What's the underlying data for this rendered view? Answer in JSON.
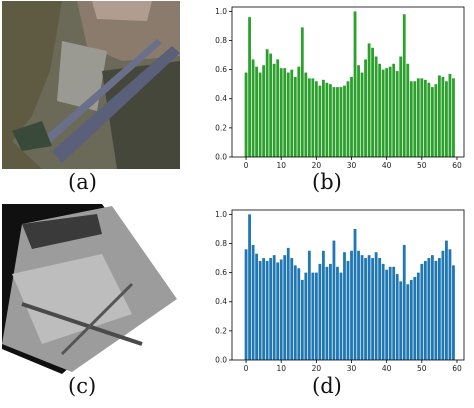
{
  "labels": {
    "a": "(a)",
    "b": "(b)",
    "c": "(c)",
    "d": "(d)"
  },
  "chart_data": [
    {
      "panel": "b",
      "type": "bar",
      "color": "#2ca02c",
      "x": [
        0,
        1,
        2,
        3,
        4,
        5,
        6,
        7,
        8,
        9,
        10,
        11,
        12,
        13,
        14,
        15,
        16,
        17,
        18,
        19,
        20,
        21,
        22,
        23,
        24,
        25,
        26,
        27,
        28,
        29,
        30,
        31,
        32,
        33,
        34,
        35,
        36,
        37,
        38,
        39,
        40,
        41,
        42,
        43,
        44,
        45,
        46,
        47,
        48,
        49,
        50,
        51,
        52,
        53,
        54,
        55,
        56,
        57,
        58,
        59
      ],
      "values": [
        0.58,
        0.96,
        0.67,
        0.62,
        0.58,
        0.63,
        0.74,
        0.71,
        0.64,
        0.67,
        0.61,
        0.61,
        0.58,
        0.6,
        0.55,
        0.62,
        0.89,
        0.58,
        0.54,
        0.54,
        0.52,
        0.49,
        0.53,
        0.51,
        0.5,
        0.48,
        0.48,
        0.48,
        0.49,
        0.52,
        0.55,
        1.0,
        0.63,
        0.58,
        0.67,
        0.78,
        0.75,
        0.69,
        0.64,
        0.6,
        0.61,
        0.62,
        0.64,
        0.59,
        0.69,
        0.98,
        0.64,
        0.52,
        0.52,
        0.54,
        0.54,
        0.53,
        0.51,
        0.48,
        0.5,
        0.56,
        0.55,
        0.52,
        0.57,
        0.54
      ],
      "xlim": [
        -4,
        62
      ],
      "ylim": [
        0,
        1.03
      ],
      "xticks": [
        0,
        10,
        20,
        30,
        40,
        50,
        60
      ],
      "yticks": [
        0.0,
        0.2,
        0.4,
        0.6,
        0.8,
        1.0
      ],
      "xtick_labels": [
        "0",
        "10",
        "20",
        "30",
        "40",
        "50",
        "60"
      ],
      "ytick_labels": [
        "0.0",
        "0.2",
        "0.4",
        "0.6",
        "0.8",
        "1.0"
      ]
    },
    {
      "panel": "d",
      "type": "bar",
      "color": "#1f77b4",
      "x": [
        0,
        1,
        2,
        3,
        4,
        5,
        6,
        7,
        8,
        9,
        10,
        11,
        12,
        13,
        14,
        15,
        16,
        17,
        18,
        19,
        20,
        21,
        22,
        23,
        24,
        25,
        26,
        27,
        28,
        29,
        30,
        31,
        32,
        33,
        34,
        35,
        36,
        37,
        38,
        39,
        40,
        41,
        42,
        43,
        44,
        45,
        46,
        47,
        48,
        49,
        50,
        51,
        52,
        53,
        54,
        55,
        56,
        57,
        58,
        59
      ],
      "values": [
        0.76,
        1.0,
        0.79,
        0.73,
        0.68,
        0.7,
        0.68,
        0.7,
        0.72,
        0.67,
        0.69,
        0.72,
        0.77,
        0.7,
        0.65,
        0.63,
        0.55,
        0.6,
        0.75,
        0.6,
        0.6,
        0.66,
        0.75,
        0.64,
        0.66,
        0.82,
        0.64,
        0.6,
        0.74,
        0.68,
        0.75,
        0.9,
        0.75,
        0.72,
        0.7,
        0.72,
        0.7,
        0.74,
        0.7,
        0.66,
        0.62,
        0.64,
        0.64,
        0.59,
        0.54,
        0.79,
        0.52,
        0.55,
        0.57,
        0.6,
        0.66,
        0.68,
        0.7,
        0.72,
        0.68,
        0.7,
        0.75,
        0.82,
        0.76,
        0.65
      ],
      "xlim": [
        -4,
        62
      ],
      "ylim": [
        0,
        1.03
      ],
      "xticks": [
        0,
        10,
        20,
        30,
        40,
        50,
        60
      ],
      "yticks": [
        0.0,
        0.2,
        0.4,
        0.6,
        0.8,
        1.0
      ],
      "xtick_labels": [
        "0",
        "10",
        "20",
        "30",
        "40",
        "50",
        "60"
      ],
      "ytick_labels": [
        "0.0",
        "0.2",
        "0.4",
        "0.6",
        "0.8",
        "1.0"
      ]
    }
  ]
}
